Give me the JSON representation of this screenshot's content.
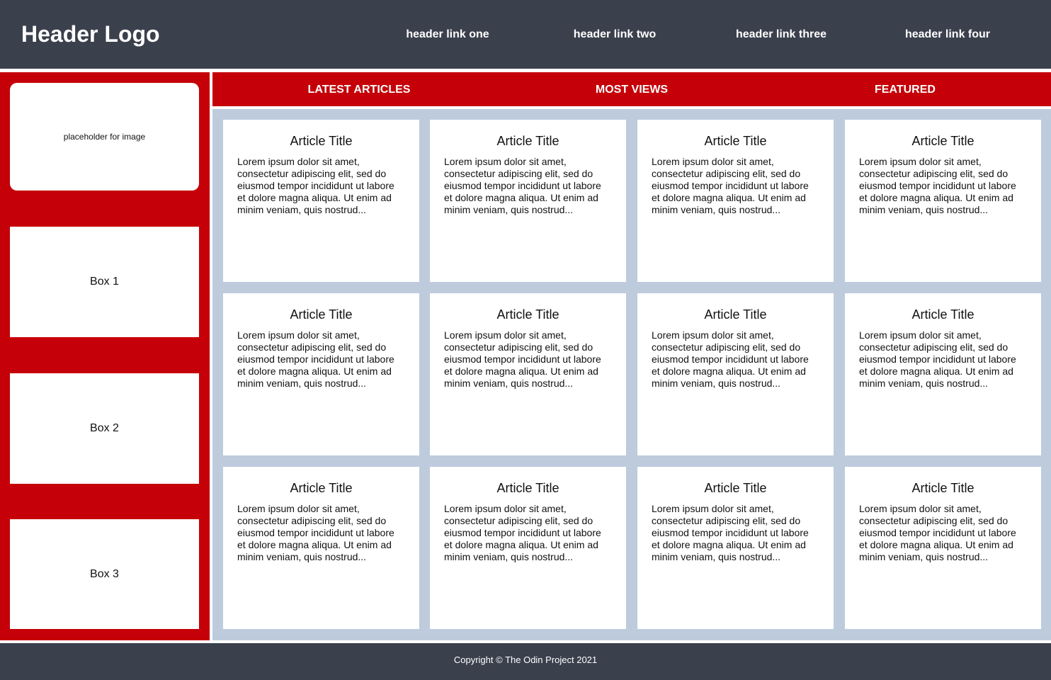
{
  "header": {
    "logo": "Header Logo",
    "links": [
      "header link one",
      "header link two",
      "header link three",
      "header link four"
    ]
  },
  "sidebar": {
    "image_placeholder": "placeholder for image",
    "boxes": [
      "Box 1",
      "Box 2",
      "Box 3"
    ]
  },
  "tabs": [
    "LATEST ARTICLES",
    "MOST VIEWS",
    "FEATURED"
  ],
  "articles": [
    {
      "title": "Article Title",
      "body": "Lorem ipsum dolor sit amet, consectetur adipiscing elit, sed do eiusmod tempor incididunt ut labore et dolore magna aliqua. Ut enim ad minim veniam, quis nostrud..."
    },
    {
      "title": "Article Title",
      "body": "Lorem ipsum dolor sit amet, consectetur adipiscing elit, sed do eiusmod tempor incididunt ut labore et dolore magna aliqua. Ut enim ad minim veniam, quis nostrud..."
    },
    {
      "title": "Article Title",
      "body": "Lorem ipsum dolor sit amet, consectetur adipiscing elit, sed do eiusmod tempor incididunt ut labore et dolore magna aliqua. Ut enim ad minim veniam, quis nostrud..."
    },
    {
      "title": "Article Title",
      "body": "Lorem ipsum dolor sit amet, consectetur adipiscing elit, sed do eiusmod tempor incididunt ut labore et dolore magna aliqua. Ut enim ad minim veniam, quis nostrud..."
    },
    {
      "title": "Article Title",
      "body": "Lorem ipsum dolor sit amet, consectetur adipiscing elit, sed do eiusmod tempor incididunt ut labore et dolore magna aliqua. Ut enim ad minim veniam, quis nostrud..."
    },
    {
      "title": "Article Title",
      "body": "Lorem ipsum dolor sit amet, consectetur adipiscing elit, sed do eiusmod tempor incididunt ut labore et dolore magna aliqua. Ut enim ad minim veniam, quis nostrud..."
    },
    {
      "title": "Article Title",
      "body": "Lorem ipsum dolor sit amet, consectetur adipiscing elit, sed do eiusmod tempor incididunt ut labore et dolore magna aliqua. Ut enim ad minim veniam, quis nostrud..."
    },
    {
      "title": "Article Title",
      "body": "Lorem ipsum dolor sit amet, consectetur adipiscing elit, sed do eiusmod tempor incididunt ut labore et dolore magna aliqua. Ut enim ad minim veniam, quis nostrud..."
    },
    {
      "title": "Article Title",
      "body": "Lorem ipsum dolor sit amet, consectetur adipiscing elit, sed do eiusmod tempor incididunt ut labore et dolore magna aliqua. Ut enim ad minim veniam, quis nostrud..."
    },
    {
      "title": "Article Title",
      "body": "Lorem ipsum dolor sit amet, consectetur adipiscing elit, sed do eiusmod tempor incididunt ut labore et dolore magna aliqua. Ut enim ad minim veniam, quis nostrud..."
    },
    {
      "title": "Article Title",
      "body": "Lorem ipsum dolor sit amet, consectetur adipiscing elit, sed do eiusmod tempor incididunt ut labore et dolore magna aliqua. Ut enim ad minim veniam, quis nostrud..."
    },
    {
      "title": "Article Title",
      "body": "Lorem ipsum dolor sit amet, consectetur adipiscing elit, sed do eiusmod tempor incididunt ut labore et dolore magna aliqua. Ut enim ad minim veniam, quis nostrud..."
    }
  ],
  "footer": {
    "copyright": "Copyright © The Odin Project 2021"
  },
  "colors": {
    "header": "#3b404d",
    "accent": "#c50008",
    "grid_bg": "#bdcbdd"
  }
}
